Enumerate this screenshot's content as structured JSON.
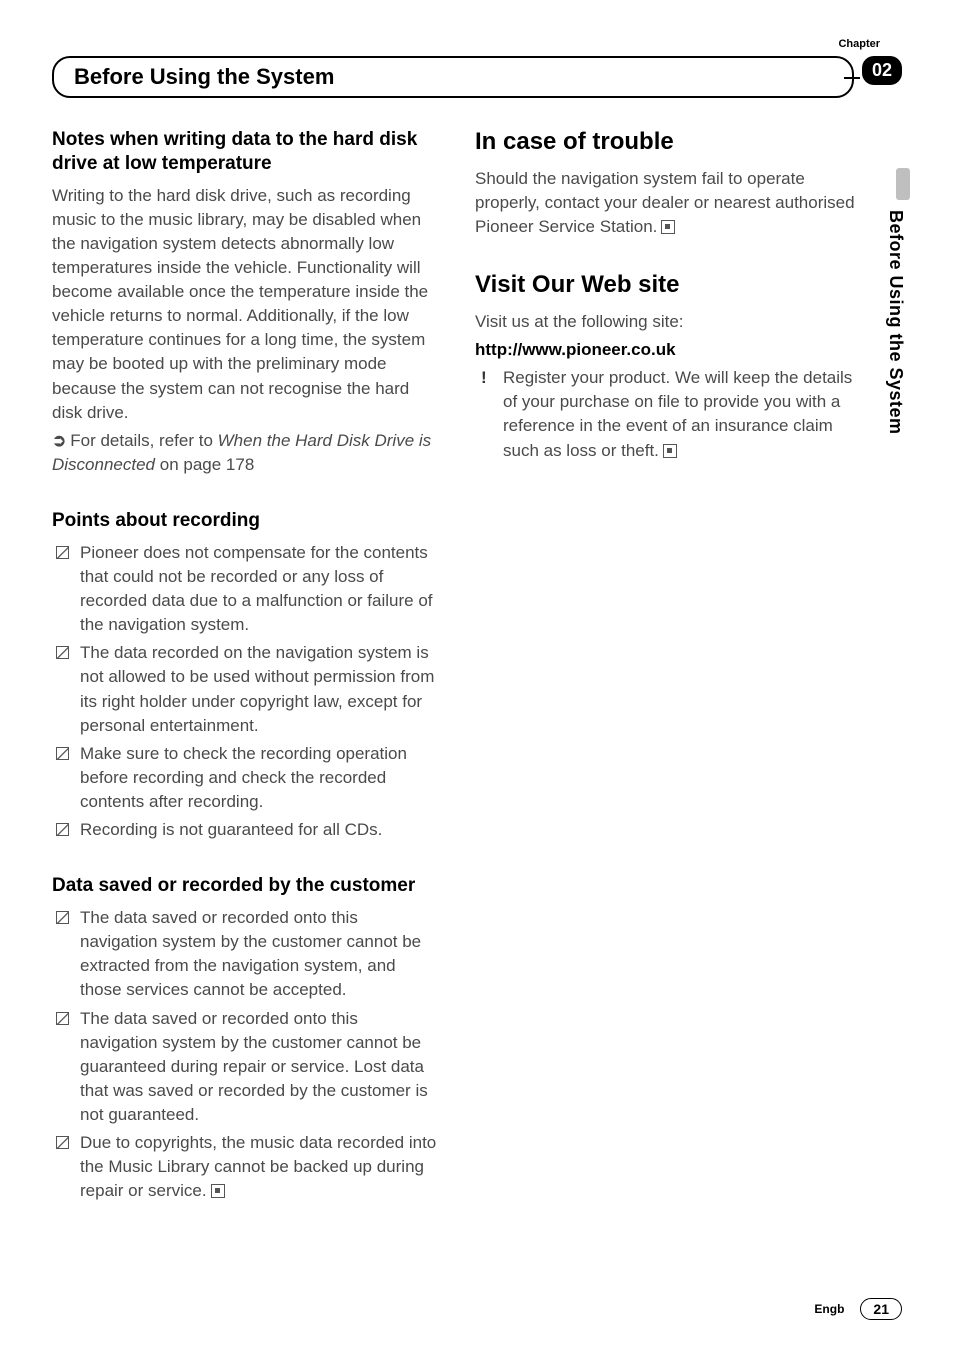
{
  "chapter_label": "Chapter",
  "chapter_number": "02",
  "header_title": "Before Using the System",
  "side_tab_text": "Before Using the System",
  "footer": {
    "lang": "Engb",
    "page": "21"
  },
  "left": {
    "s1": {
      "heading": "Notes when writing data to the hard disk drive at low temperature",
      "body": "Writing to the hard disk drive, such as recording music to the music library, may be disabled when the navigation system detects abnormally low temperatures inside the vehicle. Functionality will become available once the temperature inside the vehicle returns to normal. Additionally, if the low temperature continues for a long time, the system may be booted up with the preliminary mode because the system can not recognise the hard disk drive.",
      "ref_icon": "➲",
      "ref_prefix": "For details, refer to ",
      "ref_italic": "When the Hard Disk Drive is Disconnected",
      "ref_suffix": " on page 178"
    },
    "s2": {
      "heading": "Points about recording",
      "items": [
        "Pioneer does not compensate for the contents that could not be recorded or any loss of recorded data due to a malfunction or failure of the navigation system.",
        "The data recorded on the navigation system is not allowed to be used without permission from its right holder under copyright law, except for personal entertainment.",
        "Make sure to check the recording operation before recording and check the recorded contents after recording.",
        "Recording is not guaranteed for all CDs."
      ]
    },
    "s3": {
      "heading": "Data saved or recorded by the customer",
      "items": [
        "The data saved or recorded onto this navigation system by the customer cannot be extracted from the navigation system, and those services cannot be accepted.",
        "The data saved or recorded onto this navigation system by the customer cannot be guaranteed during repair or service. Lost data that was saved or recorded by the customer is not guaranteed.",
        "Due to copyrights, the music data recorded into the Music Library cannot be backed up during repair or service."
      ]
    }
  },
  "right": {
    "s1": {
      "heading": "In case of trouble",
      "body": "Should the navigation system fail to operate properly, contact your dealer or nearest authorised Pioneer Service Station."
    },
    "s2": {
      "heading": "Visit Our Web site",
      "line1": "Visit us at the following site:",
      "url": "http://www.pioneer.co.uk",
      "bullet": "Register your product. We will keep the details of your purchase on file to provide you with a reference in the event of an insurance claim such as loss or theft."
    }
  }
}
